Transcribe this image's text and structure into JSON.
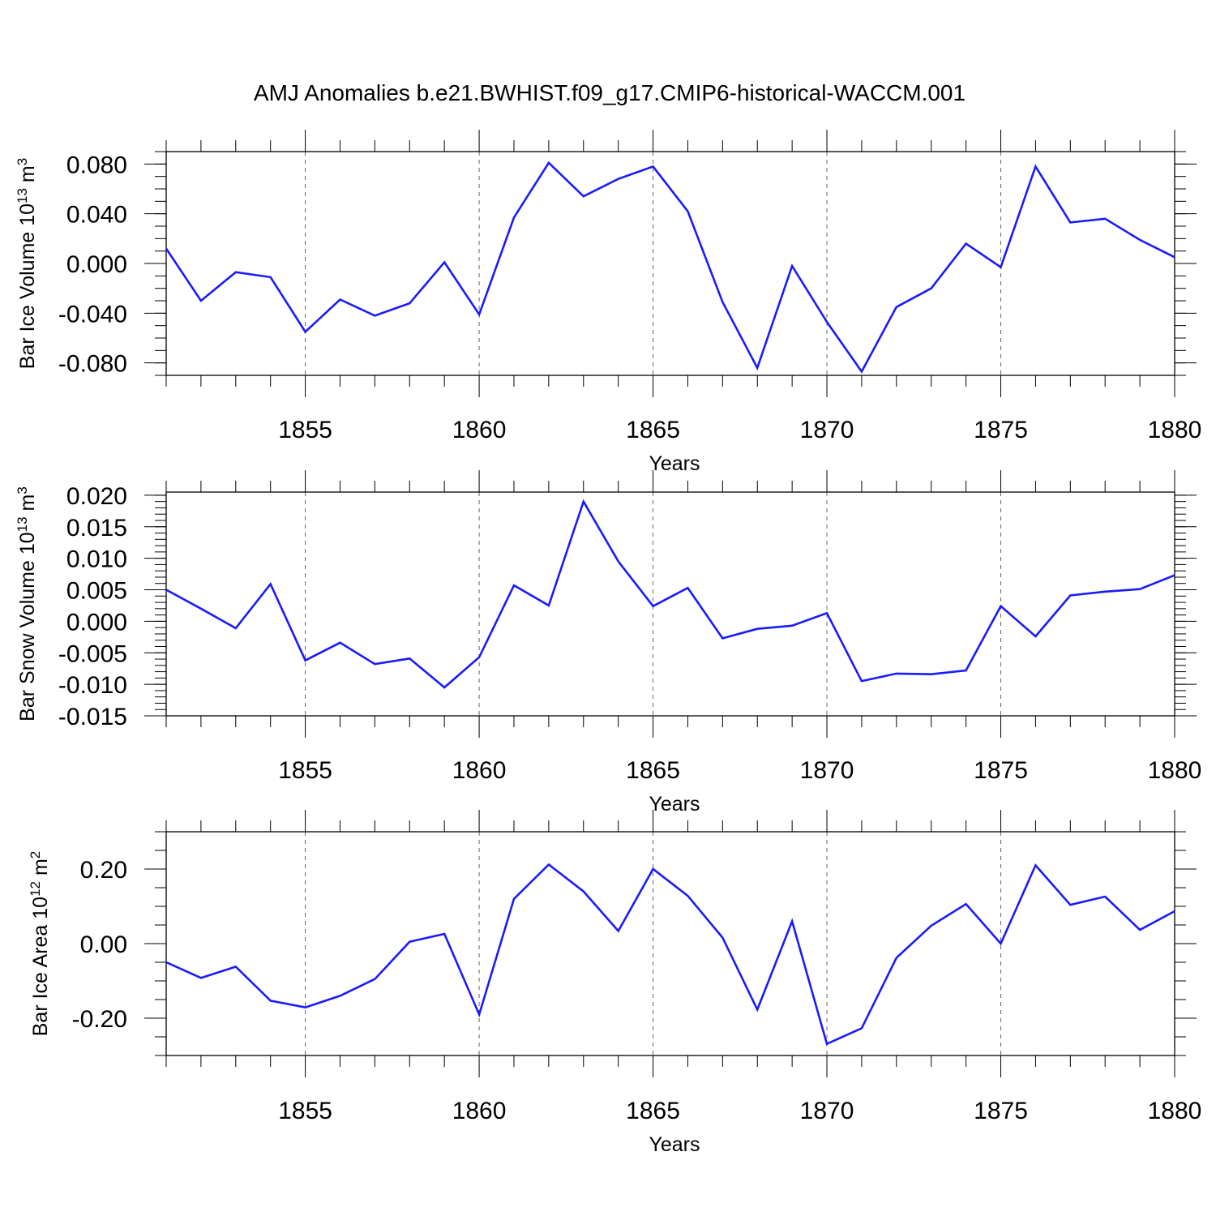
{
  "title": "AMJ Anomalies b.e21.BWHIST.f09_g17.CMIP6-historical-WACCM.001",
  "style": {
    "line_color": "#1a1aff",
    "grid_color": "#666666",
    "axis_color": "#000000"
  },
  "chart_data": [
    {
      "type": "line",
      "name": "bar-ice-volume",
      "ylabel": {
        "main": "Bar Ice Volume 10",
        "exp": "13",
        "unit": " m",
        "unit_exp": "3"
      },
      "xlabel": "Years",
      "xlim": [
        1851,
        1880
      ],
      "ylim": [
        -0.09,
        0.09
      ],
      "yticks_major": [
        -0.08,
        -0.04,
        0.0,
        0.04,
        0.08
      ],
      "ytick_labels": [
        "-0.080",
        "-0.040",
        "0.000",
        "0.040",
        "0.080"
      ],
      "yminor_step": 0.01,
      "x": [
        1851,
        1852,
        1853,
        1854,
        1855,
        1856,
        1857,
        1858,
        1859,
        1860,
        1861,
        1862,
        1863,
        1864,
        1865,
        1866,
        1867,
        1868,
        1869,
        1870,
        1871,
        1872,
        1873,
        1874,
        1875,
        1876,
        1877,
        1878,
        1879,
        1880
      ],
      "values": [
        0.012,
        -0.03,
        -0.007,
        -0.011,
        -0.055,
        -0.029,
        -0.042,
        -0.032,
        0.001,
        -0.041,
        0.037,
        0.081,
        0.054,
        0.068,
        0.078,
        0.042,
        -0.031,
        -0.084,
        -0.002,
        -0.047,
        -0.087,
        -0.035,
        -0.02,
        0.016,
        -0.003,
        0.078,
        0.033,
        0.036,
        0.019,
        0.005
      ]
    },
    {
      "type": "line",
      "name": "bar-snow-volume",
      "ylabel": {
        "main": "Bar Snow Volume 10",
        "exp": "13",
        "unit": " m",
        "unit_exp": "3"
      },
      "xlabel": "Years",
      "xlim": [
        1851,
        1880
      ],
      "ylim": [
        -0.015,
        0.0205
      ],
      "yticks_major": [
        -0.015,
        -0.01,
        -0.005,
        0.0,
        0.005,
        0.01,
        0.015,
        0.02
      ],
      "ytick_labels": [
        "-0.015",
        "-0.010",
        "-0.005",
        "0.000",
        "0.005",
        "0.010",
        "0.015",
        "0.020"
      ],
      "yminor_step": 0.001,
      "x": [
        1851,
        1852,
        1853,
        1854,
        1855,
        1856,
        1857,
        1858,
        1859,
        1860,
        1861,
        1862,
        1863,
        1864,
        1865,
        1866,
        1867,
        1868,
        1869,
        1870,
        1871,
        1872,
        1873,
        1874,
        1875,
        1876,
        1877,
        1878,
        1879,
        1880
      ],
      "values": [
        0.005,
        0.002,
        -0.0011,
        0.0059,
        -0.0062,
        -0.0034,
        -0.0068,
        -0.0059,
        -0.0105,
        -0.0057,
        0.0057,
        0.0025,
        0.019,
        0.0095,
        0.0024,
        0.0053,
        -0.0027,
        -0.0012,
        -0.0007,
        0.0013,
        -0.0095,
        -0.0083,
        -0.0084,
        -0.0078,
        0.0024,
        -0.0024,
        0.0041,
        0.0047,
        0.0051,
        0.0073
      ]
    },
    {
      "type": "line",
      "name": "bar-ice-area",
      "ylabel": {
        "main": "Bar Ice Area 10",
        "exp": "12",
        "unit": " m",
        "unit_exp": "2"
      },
      "xlabel": "Years",
      "xlim": [
        1851,
        1880
      ],
      "ylim": [
        -0.3,
        0.3
      ],
      "yticks_major": [
        -0.2,
        0.0,
        0.2
      ],
      "ytick_labels": [
        "-0.20",
        "0.00",
        "0.20"
      ],
      "yminor_step": 0.05,
      "x": [
        1851,
        1852,
        1853,
        1854,
        1855,
        1856,
        1857,
        1858,
        1859,
        1860,
        1861,
        1862,
        1863,
        1864,
        1865,
        1866,
        1867,
        1868,
        1869,
        1870,
        1871,
        1872,
        1873,
        1874,
        1875,
        1876,
        1877,
        1878,
        1879,
        1880
      ],
      "values": [
        -0.05,
        -0.092,
        -0.062,
        -0.153,
        -0.171,
        -0.14,
        -0.095,
        0.005,
        0.026,
        -0.19,
        0.12,
        0.212,
        0.14,
        0.034,
        0.2,
        0.128,
        0.016,
        -0.177,
        0.06,
        -0.269,
        -0.227,
        -0.038,
        0.048,
        0.106,
        0.0,
        0.21,
        0.104,
        0.126,
        0.037,
        0.087
      ]
    }
  ],
  "xtick_labels": [
    "1855",
    "1860",
    "1865",
    "1870",
    "1875",
    "1880"
  ]
}
